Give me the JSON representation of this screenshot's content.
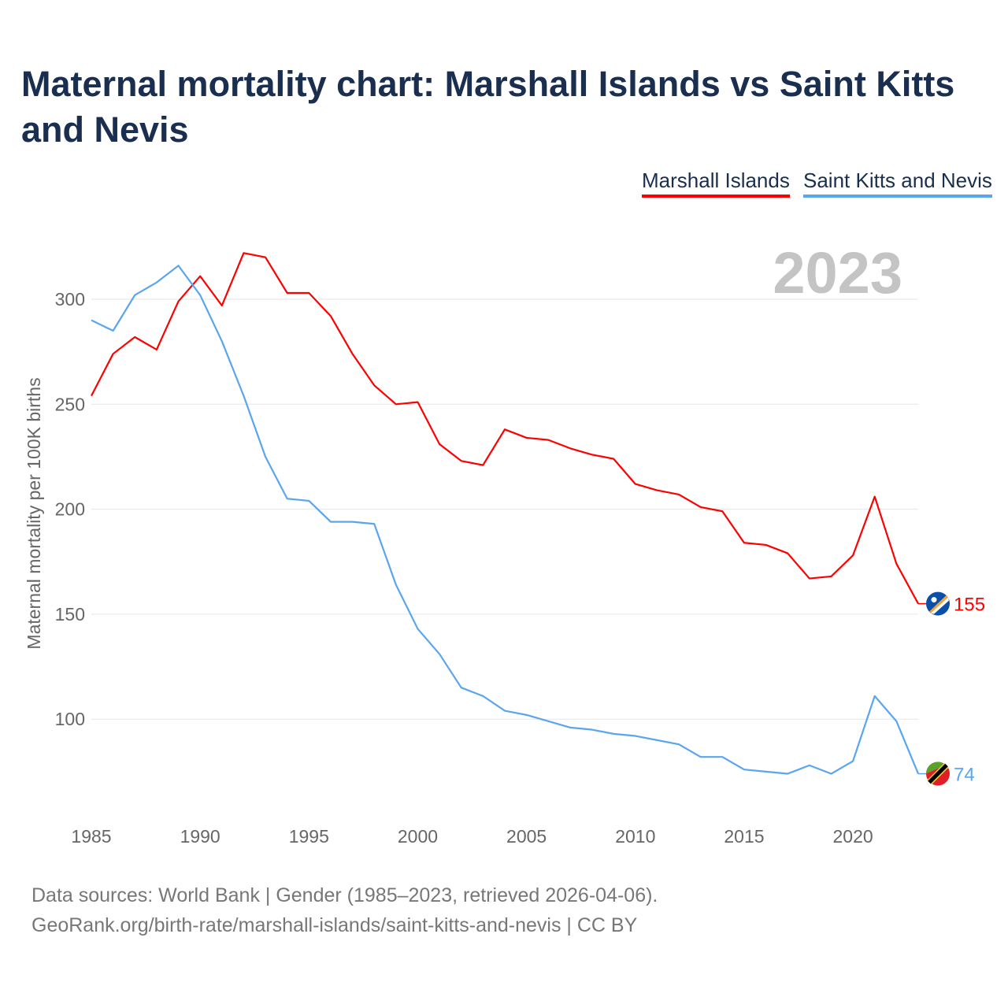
{
  "title": "Maternal mortality chart: Marshall Islands vs Saint Kitts and Nevis",
  "footer": {
    "line1": "Data sources: World Bank | Gender (1985–2023, retrieved 2026-04-06).",
    "line2": "GeoRank.org/birth-rate/marshall-islands/saint-kitts-and-nevis | CC BY"
  },
  "chart_data": {
    "type": "line",
    "title": "Maternal mortality chart: Marshall Islands vs Saint Kitts and Nevis",
    "xlabel": "",
    "ylabel": "Maternal mortality per 100K births",
    "year_label": "2023",
    "xlim": [
      1985,
      2023
    ],
    "ylim": [
      55,
      330
    ],
    "xticks": [
      1985,
      1990,
      1995,
      2000,
      2005,
      2010,
      2015,
      2020
    ],
    "yticks": [
      100,
      150,
      200,
      250,
      300
    ],
    "grid": true,
    "legend_position": "top-right",
    "x": [
      1985,
      1986,
      1987,
      1988,
      1989,
      1990,
      1991,
      1992,
      1993,
      1994,
      1995,
      1996,
      1997,
      1998,
      1999,
      2000,
      2001,
      2002,
      2003,
      2004,
      2005,
      2006,
      2007,
      2008,
      2009,
      2010,
      2011,
      2012,
      2013,
      2014,
      2015,
      2016,
      2017,
      2018,
      2019,
      2020,
      2021,
      2022,
      2023
    ],
    "series": [
      {
        "name": "Marshall Islands",
        "color": "#ff0000",
        "end_label": "155",
        "values": [
          254,
          274,
          282,
          276,
          299,
          311,
          297,
          322,
          320,
          303,
          303,
          292,
          274,
          259,
          250,
          251,
          231,
          223,
          221,
          238,
          234,
          233,
          229,
          226,
          224,
          212,
          209,
          207,
          201,
          199,
          184,
          183,
          179,
          167,
          168,
          178,
          206,
          174,
          155
        ]
      },
      {
        "name": "Saint Kitts and Nevis",
        "color": "#5aa5ef",
        "end_label": "74",
        "values": [
          290,
          285,
          302,
          308,
          316,
          302,
          280,
          254,
          225,
          205,
          204,
          194,
          194,
          193,
          164,
          143,
          131,
          115,
          111,
          104,
          102,
          99,
          96,
          95,
          93,
          92,
          90,
          88,
          82,
          82,
          76,
          75,
          74,
          78,
          74,
          80,
          111,
          99,
          74
        ]
      }
    ]
  }
}
